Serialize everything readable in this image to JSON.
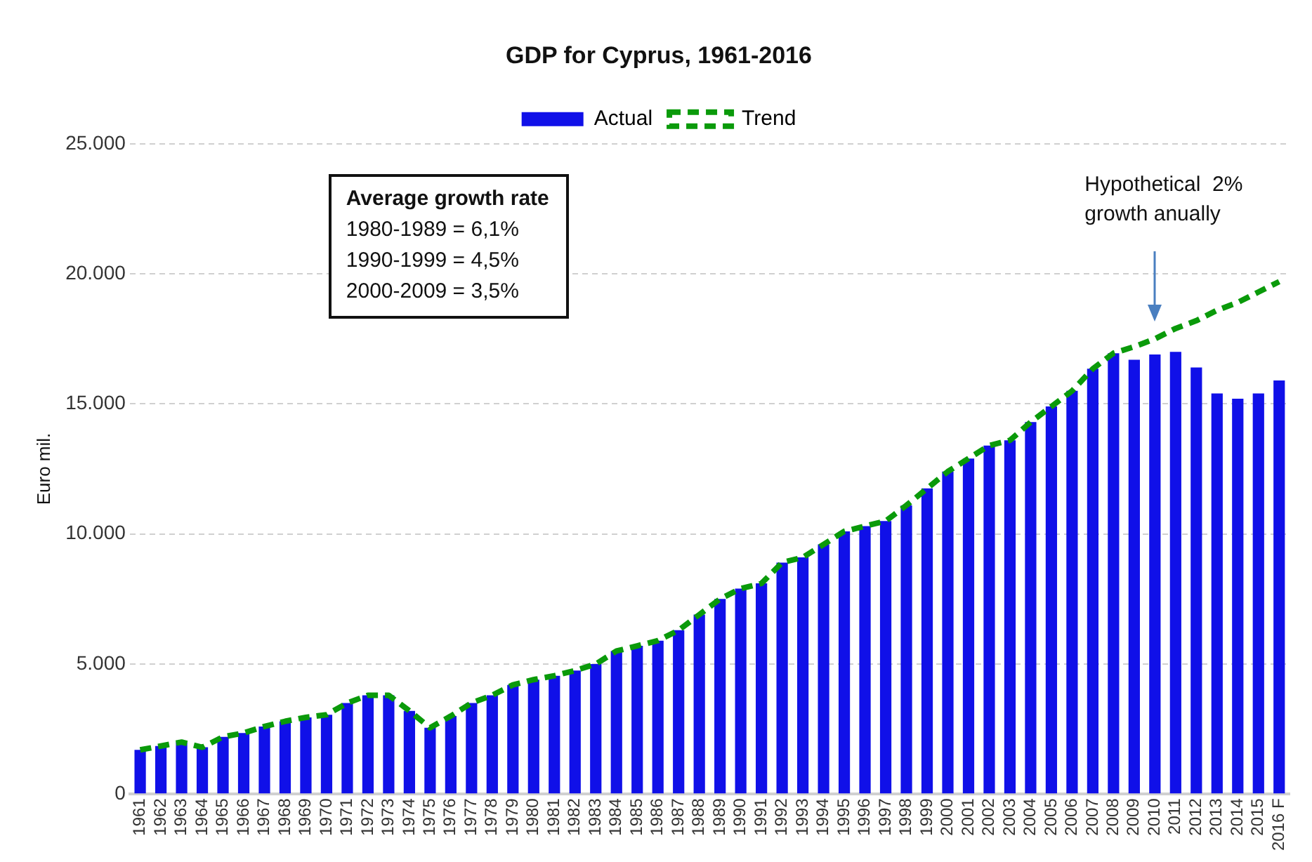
{
  "chart_data": {
    "type": "bar",
    "title": "GDP for Cyprus, 1961-2016",
    "ylabel": "Euro mil.",
    "categories": [
      "1961",
      "1962",
      "1963",
      "1964",
      "1965",
      "1966",
      "1967",
      "1968",
      "1969",
      "1970",
      "1971",
      "1972",
      "1973",
      "1974",
      "1975",
      "1976",
      "1977",
      "1978",
      "1979",
      "1980",
      "1981",
      "1982",
      "1983",
      "1984",
      "1985",
      "1986",
      "1987",
      "1988",
      "1989",
      "1990",
      "1991",
      "1992",
      "1993",
      "1994",
      "1995",
      "1996",
      "1997",
      "1998",
      "1999",
      "2000",
      "2001",
      "2002",
      "2003",
      "2004",
      "2005",
      "2006",
      "2007",
      "2008",
      "2009",
      "2010",
      "2011",
      "2012",
      "2013",
      "2014",
      "2015",
      "2016 F"
    ],
    "series": [
      {
        "name": "Actual",
        "color": "#1010e8",
        "values": [
          1700,
          1850,
          2000,
          1800,
          2200,
          2350,
          2600,
          2800,
          2950,
          3050,
          3500,
          3800,
          3800,
          3200,
          2550,
          3000,
          3500,
          3800,
          4200,
          4400,
          4550,
          4750,
          5000,
          5500,
          5700,
          5900,
          6300,
          6900,
          7500,
          7900,
          8100,
          8900,
          9100,
          9600,
          10100,
          10300,
          10500,
          11100,
          11750,
          12400,
          12900,
          13400,
          13600,
          14300,
          14900,
          15500,
          16350,
          16950,
          16700,
          16900,
          17000,
          16400,
          15400,
          15200,
          15400,
          15900
        ]
      },
      {
        "name": "Trend",
        "type": "line",
        "color": "#0a9a0a",
        "line_style": "dashed",
        "marker": "none",
        "values": [
          1700,
          1850,
          2000,
          1800,
          2200,
          2350,
          2600,
          2800,
          2950,
          3050,
          3500,
          3800,
          3800,
          3200,
          2550,
          3000,
          3500,
          3800,
          4200,
          4400,
          4550,
          4750,
          5000,
          5500,
          5700,
          5900,
          6300,
          6900,
          7500,
          7900,
          8100,
          8900,
          9100,
          9600,
          10100,
          10300,
          10500,
          11100,
          11750,
          12400,
          12900,
          13400,
          13600,
          14300,
          14900,
          15500,
          16350,
          16950,
          17200,
          17500,
          17900,
          18200,
          18600,
          18900,
          19300,
          19700
        ]
      }
    ],
    "ylim": [
      0,
      25000
    ],
    "yticks": [
      {
        "value": 0,
        "label": "0"
      },
      {
        "value": 5000,
        "label": "5.000"
      },
      {
        "value": 10000,
        "label": "10.000"
      },
      {
        "value": 15000,
        "label": "15.000"
      },
      {
        "value": 20000,
        "label": "20.000"
      },
      {
        "value": 25000,
        "label": "25.000"
      }
    ],
    "grid": "y",
    "legend": "top",
    "annotations": [
      "Average growth rate",
      "1980-1989 = 6,1%",
      "1990-1999 = 4,5%",
      "2000-2009 = 3,5%",
      "Hypothetical  2% growth anually"
    ]
  }
}
